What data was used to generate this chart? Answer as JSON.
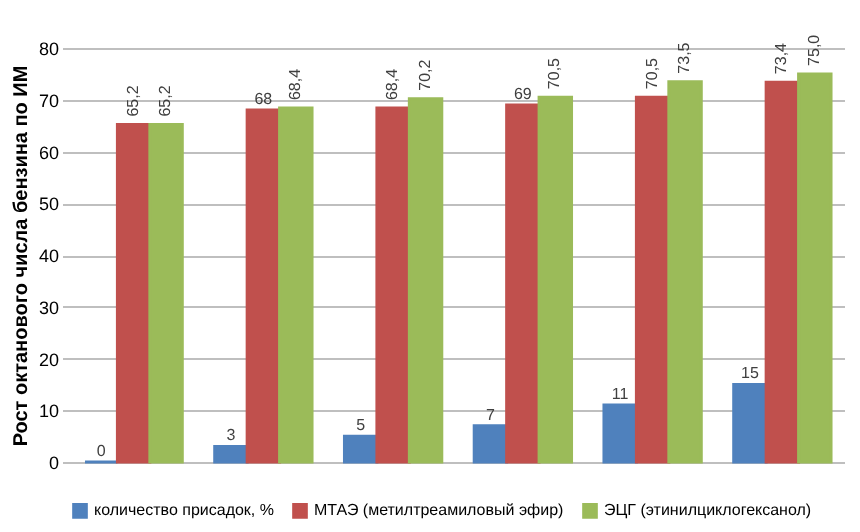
{
  "chart_data": {
    "type": "bar",
    "ylabel": "Рост октанового числа бензина по ИМ",
    "categories": [
      null,
      null,
      null,
      null,
      null,
      null
    ],
    "series": [
      {
        "name": "количество присадок, %",
        "color": "#4f81bd",
        "values": [
          0,
          3,
          5,
          7,
          11,
          15
        ],
        "value_labels": [
          "0",
          "3",
          "5",
          "7",
          "11",
          "15"
        ]
      },
      {
        "name": "МТАЭ (метилтреамиловый эфир)",
        "color": "#c0504d",
        "values": [
          65.2,
          68,
          68.4,
          69,
          70.5,
          73.4
        ],
        "value_labels": [
          "65,2",
          "68",
          "68,4",
          "69",
          "70,5",
          "73,4"
        ]
      },
      {
        "name": "ЭЦГ (этинилциклогексанол)",
        "color": "#9bbb59",
        "values": [
          65.2,
          68.4,
          70.2,
          70.5,
          73.5,
          75.0
        ],
        "value_labels": [
          "65,2",
          "68,4",
          "70,2",
          "70,5",
          "73,5",
          "75,0"
        ]
      }
    ],
    "ylim": [
      0,
      80
    ],
    "yticks": [
      0,
      10,
      20,
      30,
      40,
      50,
      60,
      70,
      80
    ],
    "grid": "y",
    "legend": "bottom"
  }
}
